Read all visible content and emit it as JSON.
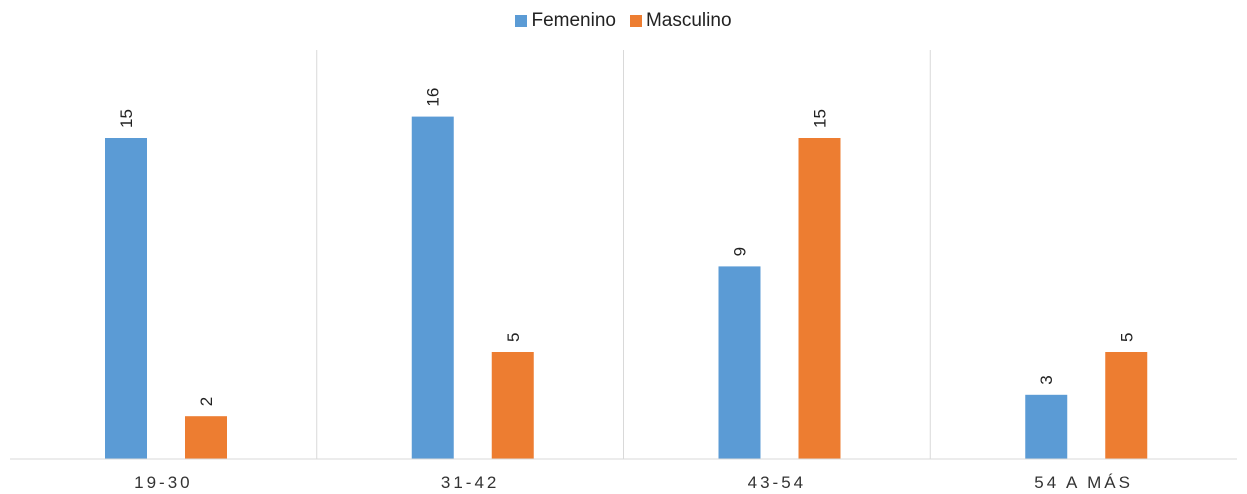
{
  "chart_data": {
    "type": "bar",
    "categories": [
      "19-30",
      "31-42",
      "43-54",
      "54 A MÁS"
    ],
    "series": [
      {
        "name": "Femenino",
        "color": "#5b9bd5",
        "values": [
          15,
          16,
          9,
          3
        ]
      },
      {
        "name": "Masculino",
        "color": "#ed7d31",
        "values": [
          2,
          5,
          15,
          5
        ]
      }
    ],
    "title": "",
    "xlabel": "",
    "ylabel": "",
    "ylim": [
      0,
      17
    ],
    "grid": false,
    "legend": "top-center",
    "data_labels": true
  }
}
